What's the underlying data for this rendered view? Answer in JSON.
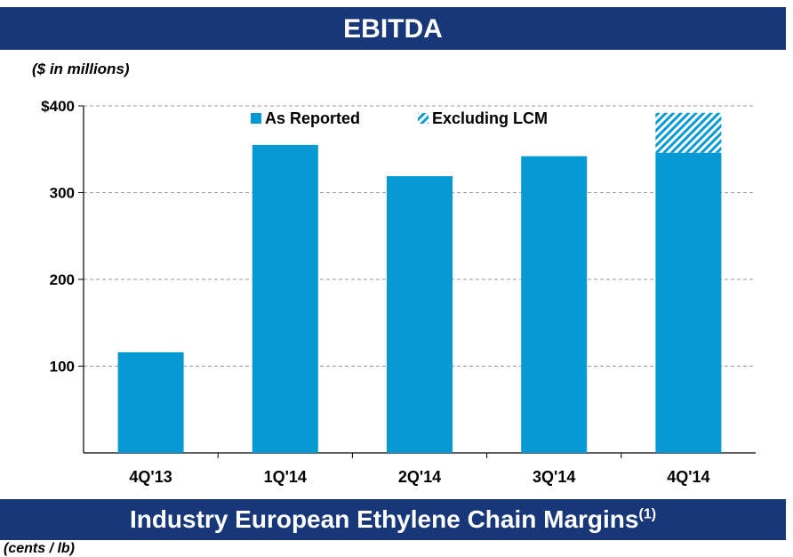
{
  "header": {
    "title": "EBITDA"
  },
  "units_top": "($ in millions)",
  "footer": {
    "title": "Industry European Ethylene Chain Margins",
    "superscript": "(1)"
  },
  "units_bottom": "(cents / lb)",
  "colors": {
    "banner": "#173778",
    "bar": "#0799d4",
    "hatch": "#0799d4",
    "grid": "#9a9a9a"
  },
  "chart_data": {
    "type": "bar",
    "stacked": true,
    "categories": [
      "4Q'13",
      "1Q'14",
      "2Q'14",
      "3Q'14",
      "4Q'14"
    ],
    "series": [
      {
        "name": "As Reported",
        "values": [
          116,
          355,
          319,
          342,
          346
        ],
        "pattern": "solid"
      },
      {
        "name": "Excluding LCM",
        "values": [
          0,
          0,
          0,
          0,
          46
        ],
        "pattern": "hatch"
      }
    ],
    "ylim": [
      0,
      400
    ],
    "yticks": [
      100,
      200,
      300,
      400
    ],
    "ytick_labels": [
      "100",
      "200",
      "300",
      "$400"
    ],
    "grid": true,
    "legend": "top"
  }
}
